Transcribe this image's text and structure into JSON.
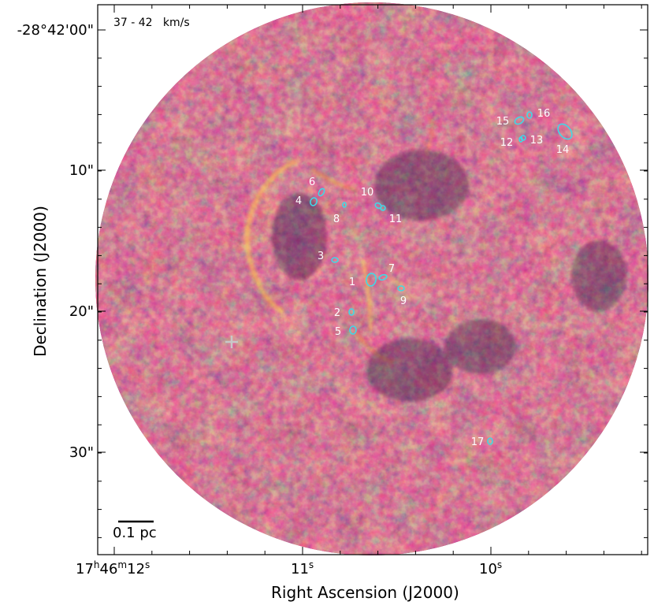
{
  "plot": {
    "velocity_label": "37 - 42   km/s",
    "scale_bar_label": "0.1 pc"
  },
  "axes": {
    "x_title": "Right Ascension (J2000)",
    "y_title": "Declination (J2000)",
    "y_ticks": [
      "-28°42'00\"",
      "10\"",
      "20\"",
      "30\""
    ],
    "x_ticks": [
      {
        "main": "17",
        "h": "h",
        "m_main": "46",
        "m": "m",
        "s_main": "12",
        "s": "s"
      },
      {
        "main": "11",
        "s": "s"
      },
      {
        "main": "10",
        "s": "s"
      }
    ]
  },
  "sources": [
    {
      "id": "1"
    },
    {
      "id": "2"
    },
    {
      "id": "3"
    },
    {
      "id": "4"
    },
    {
      "id": "5"
    },
    {
      "id": "6"
    },
    {
      "id": "7"
    },
    {
      "id": "8"
    },
    {
      "id": "9"
    },
    {
      "id": "10"
    },
    {
      "id": "11"
    },
    {
      "id": "12"
    },
    {
      "id": "13"
    },
    {
      "id": "14"
    },
    {
      "id": "15"
    },
    {
      "id": "16"
    },
    {
      "id": "17"
    }
  ],
  "colors": {
    "colormap_low": "#1e0a3c",
    "colormap_mid": "#b33a4e",
    "colormap_high": "#f6a12c",
    "contour": "#3fd9e6",
    "source_label": "#ffffff",
    "marker": "#c8c8c8"
  }
}
